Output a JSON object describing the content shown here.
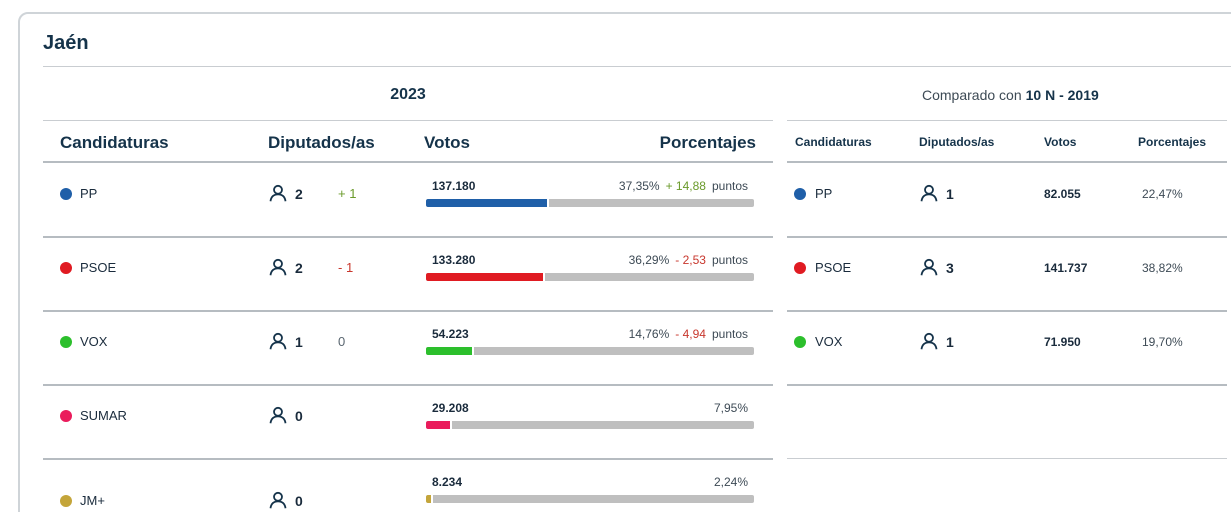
{
  "region": "Jaén",
  "main": {
    "year": "2023",
    "headers": {
      "party": "Candidaturas",
      "seats": "Diputados/as",
      "votes": "Votos",
      "pct": "Porcentajes"
    },
    "rows": [
      {
        "party": "PP",
        "color": "#1f5fa8",
        "seats": "2",
        "seat_diff": "+ 1",
        "seat_diff_type": "pos",
        "votes": "137.180",
        "pct": "37,35%",
        "delta": "+ 14,88",
        "delta_type": "pos",
        "unit": "puntos",
        "share": 0.3735
      },
      {
        "party": "PSOE",
        "color": "#e01b22",
        "seats": "2",
        "seat_diff": "- 1",
        "seat_diff_type": "neg",
        "votes": "133.280",
        "pct": "36,29%",
        "delta": "- 2,53",
        "delta_type": "neg",
        "unit": "puntos",
        "share": 0.3629
      },
      {
        "party": "VOX",
        "color": "#2cbf2c",
        "seats": "1",
        "seat_diff": "0",
        "seat_diff_type": "zero",
        "votes": "54.223",
        "pct": "14,76%",
        "delta": "- 4,94",
        "delta_type": "neg",
        "unit": "puntos",
        "share": 0.1476
      },
      {
        "party": "SUMAR",
        "color": "#ea1c5c",
        "seats": "0",
        "seat_diff": "",
        "seat_diff_type": "zero",
        "votes": "29.208",
        "pct": "7,95%",
        "delta": "",
        "delta_type": "zero",
        "unit": "",
        "share": 0.0795
      },
      {
        "party": "JM+",
        "color": "#c4a53a",
        "seats": "0",
        "seat_diff": "",
        "seat_diff_type": "zero",
        "votes": "8.234",
        "pct": "2,24%",
        "delta": "",
        "delta_type": "zero",
        "unit": "",
        "share": 0.0224
      }
    ]
  },
  "compare": {
    "label": "Comparado con",
    "election": "10 N - 2019",
    "headers": {
      "party": "Candidaturas",
      "seats": "Diputados/as",
      "votes": "Votos",
      "pct": "Porcentajes"
    },
    "rows": [
      {
        "party": "PP",
        "color": "#1f5fa8",
        "seats": "1",
        "votes": "82.055",
        "pct": "22,47%"
      },
      {
        "party": "PSOE",
        "color": "#e01b22",
        "seats": "3",
        "votes": "141.737",
        "pct": "38,82%"
      },
      {
        "party": "VOX",
        "color": "#2cbf2c",
        "seats": "1",
        "votes": "71.950",
        "pct": "19,70%"
      }
    ]
  },
  "icons": {
    "seats": "person-outline-icon"
  }
}
